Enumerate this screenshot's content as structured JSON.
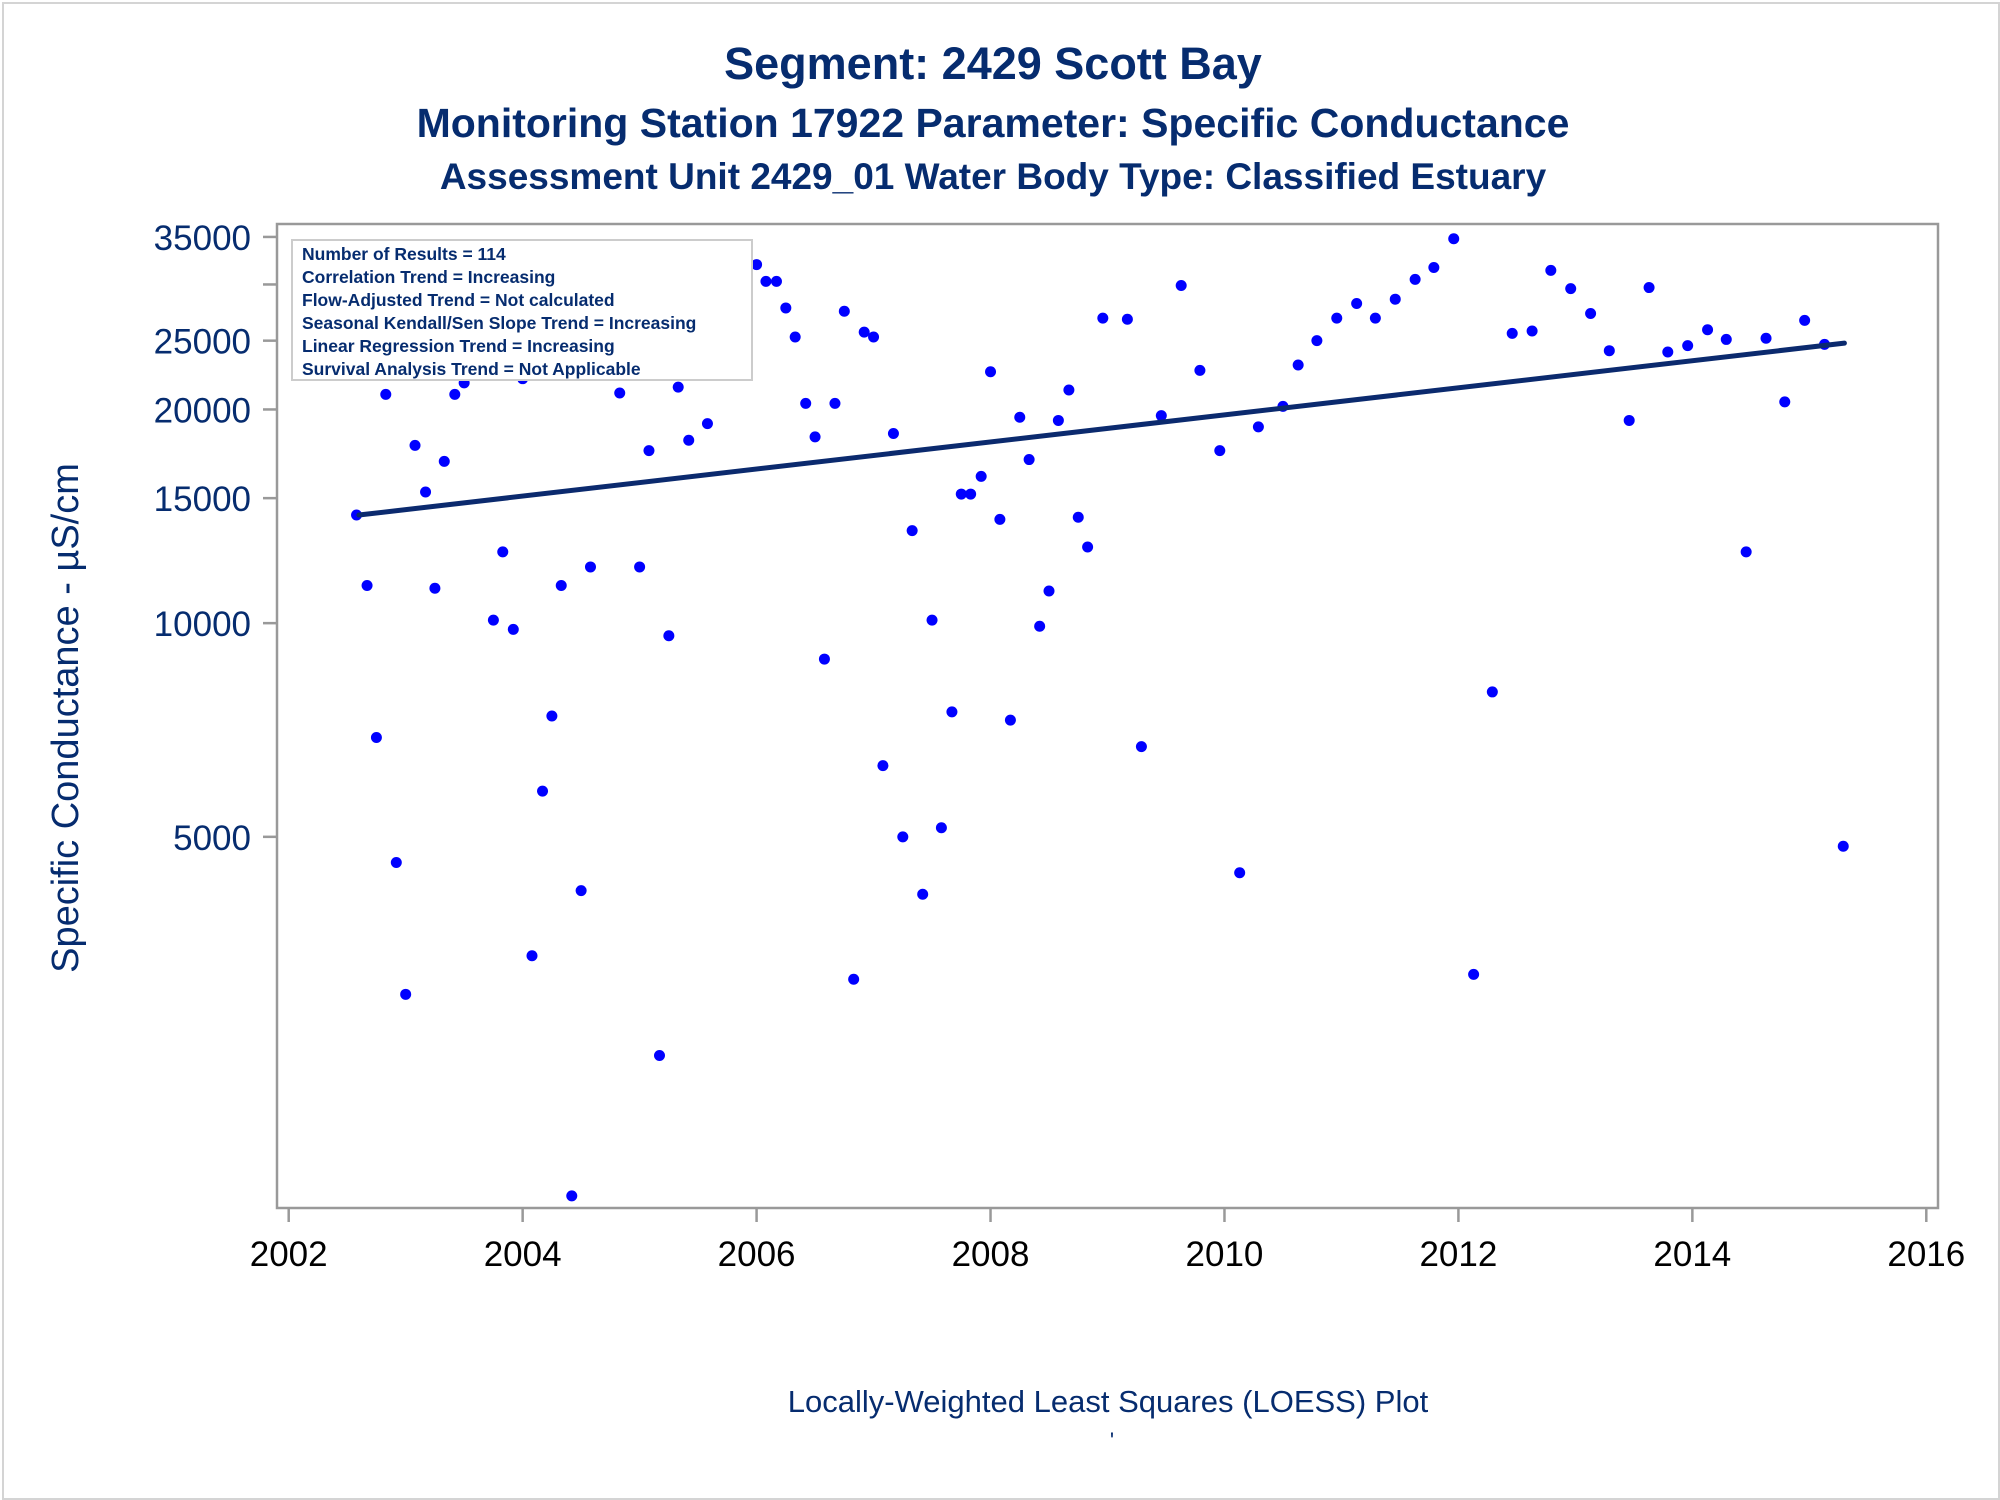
{
  "titles": {
    "line1": "Segment: 2429  Scott Bay",
    "line2": "Monitoring Station 17922 Parameter: Specific Conductance",
    "line3": "Assessment Unit 2429_01   Water Body Type: Classified Estuary"
  },
  "chart_data": {
    "type": "scatter",
    "xlabel": "Locally-Weighted Least Squares (LOESS) Plot",
    "footnote": "'",
    "ylabel": "Specific Conductance -  µS/cm",
    "y_scale": "log",
    "xlim": [
      2001.9,
      2016.1
    ],
    "ylim": [
      1500,
      36500
    ],
    "x_ticks": [
      2002,
      2004,
      2006,
      2008,
      2010,
      2012,
      2014,
      2016
    ],
    "y_ticks": [
      5000,
      10000,
      15000,
      20000,
      25000,
      35000
    ],
    "y_tick_labels": [
      "5000",
      "10000",
      "15000",
      "20000",
      "25000",
      "35000"
    ],
    "stats_box": [
      "Number of Results = 114",
      "Correlation Trend = Increasing",
      "Flow-Adjusted Trend = Not calculated",
      "Seasonal Kendall/Sen Slope Trend = Increasing",
      "Linear Regression Trend = Increasing",
      "Survival Analysis Trend = Not Applicable"
    ],
    "colors": {
      "points": "#0000ff",
      "trend": "#0b2a6e",
      "text": "#062c6f"
    },
    "trend_line": {
      "x": [
        2002.6,
        2015.3
      ],
      "y": [
        14200,
        24800
      ]
    },
    "points": [
      [
        2002.58,
        14200
      ],
      [
        2002.67,
        11300
      ],
      [
        2002.75,
        6900
      ],
      [
        2002.83,
        21000
      ],
      [
        2002.92,
        4600
      ],
      [
        2003.0,
        3000
      ],
      [
        2003.08,
        17800
      ],
      [
        2003.17,
        15300
      ],
      [
        2003.25,
        11200
      ],
      [
        2003.33,
        16900
      ],
      [
        2003.42,
        21000
      ],
      [
        2003.5,
        21800
      ],
      [
        2003.67,
        25600
      ],
      [
        2003.75,
        10100
      ],
      [
        2003.83,
        12600
      ],
      [
        2003.92,
        9800
      ],
      [
        2004.0,
        22100
      ],
      [
        2004.08,
        3400
      ],
      [
        2004.17,
        5800
      ],
      [
        2004.25,
        7400
      ],
      [
        2004.33,
        11300
      ],
      [
        2004.42,
        1560
      ],
      [
        2004.5,
        4200
      ],
      [
        2004.58,
        12000
      ],
      [
        2004.67,
        25400
      ],
      [
        2004.75,
        24500
      ],
      [
        2004.83,
        21100
      ],
      [
        2004.92,
        30300
      ],
      [
        2005.0,
        12000
      ],
      [
        2005.08,
        17500
      ],
      [
        2005.17,
        2460
      ],
      [
        2005.25,
        9600
      ],
      [
        2005.33,
        21500
      ],
      [
        2005.42,
        18100
      ],
      [
        2005.5,
        24300
      ],
      [
        2005.58,
        19100
      ],
      [
        2005.67,
        25800
      ],
      [
        2005.75,
        26300
      ],
      [
        2005.83,
        28100
      ],
      [
        2005.92,
        28500
      ],
      [
        2006.0,
        32000
      ],
      [
        2006.08,
        30300
      ],
      [
        2006.17,
        30300
      ],
      [
        2006.25,
        27800
      ],
      [
        2006.33,
        25300
      ],
      [
        2006.42,
        20400
      ],
      [
        2006.5,
        18300
      ],
      [
        2006.58,
        8900
      ],
      [
        2006.67,
        20400
      ],
      [
        2006.75,
        27500
      ],
      [
        2006.83,
        3150
      ],
      [
        2006.92,
        25700
      ],
      [
        2007.0,
        25300
      ],
      [
        2007.08,
        6300
      ],
      [
        2007.17,
        18500
      ],
      [
        2007.25,
        5000
      ],
      [
        2007.33,
        13500
      ],
      [
        2007.42,
        4150
      ],
      [
        2007.5,
        10100
      ],
      [
        2007.58,
        5150
      ],
      [
        2007.67,
        7500
      ],
      [
        2007.75,
        15200
      ],
      [
        2007.83,
        15200
      ],
      [
        2007.92,
        16100
      ],
      [
        2008.0,
        22600
      ],
      [
        2008.08,
        14000
      ],
      [
        2008.17,
        7300
      ],
      [
        2008.25,
        19500
      ],
      [
        2008.33,
        17000
      ],
      [
        2008.42,
        9900
      ],
      [
        2008.5,
        11100
      ],
      [
        2008.58,
        19300
      ],
      [
        2008.67,
        21300
      ],
      [
        2008.75,
        14100
      ],
      [
        2008.83,
        12800
      ],
      [
        2008.96,
        26900
      ],
      [
        2009.17,
        26800
      ],
      [
        2009.29,
        6700
      ],
      [
        2009.46,
        19600
      ],
      [
        2009.63,
        29900
      ],
      [
        2009.79,
        22700
      ],
      [
        2009.96,
        17500
      ],
      [
        2010.13,
        4450
      ],
      [
        2010.29,
        18900
      ],
      [
        2010.5,
        20200
      ],
      [
        2010.63,
        23100
      ],
      [
        2010.79,
        25000
      ],
      [
        2010.96,
        26900
      ],
      [
        2011.13,
        28200
      ],
      [
        2011.29,
        26900
      ],
      [
        2011.46,
        28600
      ],
      [
        2011.63,
        30500
      ],
      [
        2011.79,
        31700
      ],
      [
        2011.96,
        34800
      ],
      [
        2012.13,
        3200
      ],
      [
        2012.29,
        8000
      ],
      [
        2012.46,
        25600
      ],
      [
        2012.63,
        25800
      ],
      [
        2012.79,
        31400
      ],
      [
        2012.96,
        29600
      ],
      [
        2013.13,
        27300
      ],
      [
        2013.29,
        24200
      ],
      [
        2013.46,
        19300
      ],
      [
        2013.63,
        29700
      ],
      [
        2013.79,
        24100
      ],
      [
        2013.96,
        24600
      ],
      [
        2014.13,
        25900
      ],
      [
        2014.29,
        25100
      ],
      [
        2014.46,
        12600
      ],
      [
        2014.63,
        25200
      ],
      [
        2014.79,
        20500
      ],
      [
        2014.96,
        26700
      ],
      [
        2015.13,
        24700
      ],
      [
        2015.29,
        4850
      ]
    ]
  }
}
